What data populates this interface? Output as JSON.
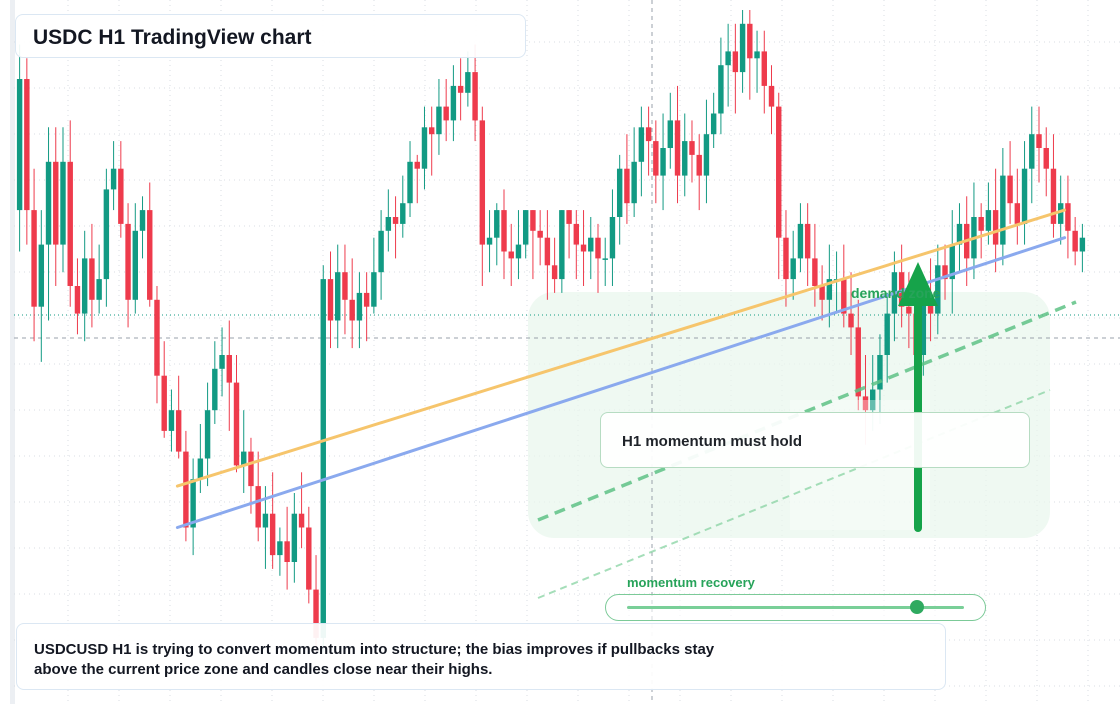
{
  "header": {
    "title": "USDC H1 TradingView chart"
  },
  "note": {
    "text": "H1 momentum must hold"
  },
  "caption": {
    "text": "USDCUSD H1 is trying to convert momentum into structure; the bias improves if pullbacks stay above the current price zone and candles close near their highs."
  },
  "demand_label": "demand zone",
  "momentum": {
    "label": "momentum recovery",
    "level": 0.86
  },
  "colors": {
    "up": "#129a83",
    "down": "#ee3b4c",
    "grid": "#d9dde3",
    "trend_orange": "#f6c56c",
    "trend_blue": "#8aa9ee",
    "accent_green": "#27a35a",
    "zone": "#e8f6ec"
  },
  "chart_data": {
    "type": "candlestick",
    "title": "USDC H1 TradingView chart",
    "xlabel": "",
    "ylabel": "",
    "symbol": "USDCUSD",
    "timeframe": "H1",
    "grid": true,
    "ylim": [
      0,
      1
    ],
    "candles": [
      [
        0.71,
        0.9,
        0.95,
        0.65
      ],
      [
        0.9,
        0.71,
        0.93,
        0.66
      ],
      [
        0.71,
        0.57,
        0.77,
        0.52
      ],
      [
        0.57,
        0.66,
        0.71,
        0.49
      ],
      [
        0.66,
        0.78,
        0.83,
        0.55
      ],
      [
        0.78,
        0.66,
        0.83,
        0.6
      ],
      [
        0.66,
        0.78,
        0.83,
        0.62
      ],
      [
        0.78,
        0.6,
        0.84,
        0.57
      ],
      [
        0.6,
        0.56,
        0.64,
        0.53
      ],
      [
        0.56,
        0.64,
        0.68,
        0.52
      ],
      [
        0.64,
        0.58,
        0.69,
        0.54
      ],
      [
        0.58,
        0.61,
        0.66,
        0.56
      ],
      [
        0.61,
        0.74,
        0.77,
        0.57
      ],
      [
        0.74,
        0.77,
        0.81,
        0.71
      ],
      [
        0.77,
        0.69,
        0.81,
        0.67
      ],
      [
        0.69,
        0.58,
        0.72,
        0.54
      ],
      [
        0.58,
        0.68,
        0.72,
        0.56
      ],
      [
        0.68,
        0.71,
        0.73,
        0.64
      ],
      [
        0.71,
        0.58,
        0.75,
        0.57
      ],
      [
        0.58,
        0.47,
        0.6,
        0.43
      ],
      [
        0.47,
        0.39,
        0.52,
        0.38
      ],
      [
        0.39,
        0.42,
        0.45,
        0.36
      ],
      [
        0.42,
        0.36,
        0.47,
        0.35
      ],
      [
        0.36,
        0.25,
        0.39,
        0.23
      ],
      [
        0.25,
        0.32,
        0.35,
        0.21
      ],
      [
        0.32,
        0.35,
        0.4,
        0.3
      ],
      [
        0.35,
        0.42,
        0.46,
        0.31
      ],
      [
        0.42,
        0.48,
        0.52,
        0.4
      ],
      [
        0.48,
        0.5,
        0.54,
        0.44
      ],
      [
        0.5,
        0.46,
        0.55,
        0.39
      ],
      [
        0.46,
        0.34,
        0.5,
        0.33
      ],
      [
        0.34,
        0.36,
        0.42,
        0.3
      ],
      [
        0.36,
        0.31,
        0.38,
        0.27
      ],
      [
        0.31,
        0.25,
        0.36,
        0.23
      ],
      [
        0.25,
        0.27,
        0.31,
        0.19
      ],
      [
        0.27,
        0.21,
        0.33,
        0.19
      ],
      [
        0.21,
        0.23,
        0.25,
        0.18
      ],
      [
        0.23,
        0.2,
        0.28,
        0.16
      ],
      [
        0.2,
        0.27,
        0.3,
        0.17
      ],
      [
        0.27,
        0.25,
        0.33,
        0.22
      ],
      [
        0.25,
        0.16,
        0.28,
        0.14
      ],
      [
        0.16,
        0.09,
        0.21,
        0.07
      ],
      [
        0.09,
        0.61,
        0.63,
        0.07
      ],
      [
        0.61,
        0.55,
        0.65,
        0.51
      ],
      [
        0.55,
        0.62,
        0.66,
        0.51
      ],
      [
        0.62,
        0.58,
        0.66,
        0.53
      ],
      [
        0.58,
        0.55,
        0.64,
        0.51
      ],
      [
        0.55,
        0.59,
        0.62,
        0.51
      ],
      [
        0.59,
        0.57,
        0.62,
        0.52
      ],
      [
        0.57,
        0.62,
        0.67,
        0.56
      ],
      [
        0.62,
        0.68,
        0.71,
        0.58
      ],
      [
        0.68,
        0.7,
        0.74,
        0.65
      ],
      [
        0.7,
        0.69,
        0.73,
        0.64
      ],
      [
        0.69,
        0.72,
        0.76,
        0.67
      ],
      [
        0.72,
        0.78,
        0.81,
        0.7
      ],
      [
        0.78,
        0.77,
        0.79,
        0.72
      ],
      [
        0.77,
        0.83,
        0.86,
        0.74
      ],
      [
        0.83,
        0.82,
        0.86,
        0.76
      ],
      [
        0.82,
        0.86,
        0.9,
        0.79
      ],
      [
        0.86,
        0.84,
        0.9,
        0.81
      ],
      [
        0.84,
        0.89,
        0.92,
        0.81
      ],
      [
        0.89,
        0.88,
        0.93,
        0.84
      ],
      [
        0.88,
        0.91,
        0.94,
        0.86
      ],
      [
        0.91,
        0.84,
        0.95,
        0.81
      ],
      [
        0.84,
        0.66,
        0.86,
        0.6
      ],
      [
        0.66,
        0.67,
        0.71,
        0.62
      ],
      [
        0.67,
        0.71,
        0.72,
        0.63
      ],
      [
        0.71,
        0.65,
        0.74,
        0.61
      ],
      [
        0.65,
        0.64,
        0.69,
        0.6
      ],
      [
        0.64,
        0.66,
        0.71,
        0.61
      ],
      [
        0.66,
        0.71,
        0.71,
        0.64
      ],
      [
        0.71,
        0.68,
        0.71,
        0.61
      ],
      [
        0.68,
        0.67,
        0.71,
        0.63
      ],
      [
        0.67,
        0.63,
        0.71,
        0.58
      ],
      [
        0.63,
        0.61,
        0.67,
        0.59
      ],
      [
        0.61,
        0.71,
        0.71,
        0.59
      ],
      [
        0.71,
        0.69,
        0.71,
        0.64
      ],
      [
        0.69,
        0.66,
        0.71,
        0.61
      ],
      [
        0.66,
        0.65,
        0.71,
        0.6
      ],
      [
        0.65,
        0.67,
        0.7,
        0.61
      ],
      [
        0.67,
        0.64,
        0.69,
        0.59
      ],
      [
        0.64,
        0.64,
        0.67,
        0.6
      ],
      [
        0.64,
        0.7,
        0.74,
        0.6
      ],
      [
        0.7,
        0.77,
        0.79,
        0.66
      ],
      [
        0.77,
        0.72,
        0.82,
        0.69
      ],
      [
        0.72,
        0.78,
        0.83,
        0.7
      ],
      [
        0.78,
        0.83,
        0.86,
        0.73
      ],
      [
        0.83,
        0.81,
        0.86,
        0.76
      ],
      [
        0.81,
        0.76,
        0.84,
        0.72
      ],
      [
        0.76,
        0.8,
        0.85,
        0.71
      ],
      [
        0.8,
        0.84,
        0.88,
        0.77
      ],
      [
        0.84,
        0.76,
        0.89,
        0.72
      ],
      [
        0.76,
        0.81,
        0.85,
        0.73
      ],
      [
        0.81,
        0.79,
        0.84,
        0.75
      ],
      [
        0.79,
        0.76,
        0.82,
        0.71
      ],
      [
        0.76,
        0.82,
        0.87,
        0.72
      ],
      [
        0.82,
        0.85,
        0.88,
        0.8
      ],
      [
        0.85,
        0.92,
        0.96,
        0.82
      ],
      [
        0.92,
        0.94,
        0.98,
        0.86
      ],
      [
        0.94,
        0.91,
        0.98,
        0.85
      ],
      [
        0.91,
        0.98,
        1.0,
        0.88
      ],
      [
        0.98,
        0.93,
        1.0,
        0.87
      ],
      [
        0.93,
        0.94,
        0.97,
        0.88
      ],
      [
        0.94,
        0.89,
        0.97,
        0.85
      ],
      [
        0.89,
        0.86,
        0.92,
        0.82
      ],
      [
        0.86,
        0.67,
        0.88,
        0.61
      ],
      [
        0.67,
        0.61,
        0.71,
        0.57
      ],
      [
        0.61,
        0.64,
        0.68,
        0.58
      ],
      [
        0.64,
        0.69,
        0.72,
        0.62
      ],
      [
        0.69,
        0.64,
        0.72,
        0.6
      ],
      [
        0.64,
        0.6,
        0.69,
        0.57
      ],
      [
        0.6,
        0.58,
        0.63,
        0.55
      ],
      [
        0.58,
        0.61,
        0.66,
        0.54
      ],
      [
        0.61,
        0.61,
        0.65,
        0.56
      ],
      [
        0.61,
        0.56,
        0.66,
        0.54
      ],
      [
        0.56,
        0.54,
        0.62,
        0.5
      ],
      [
        0.54,
        0.44,
        0.58,
        0.42
      ],
      [
        0.44,
        0.42,
        0.5,
        0.37
      ],
      [
        0.42,
        0.45,
        0.5,
        0.39
      ],
      [
        0.45,
        0.5,
        0.53,
        0.4
      ],
      [
        0.5,
        0.56,
        0.59,
        0.46
      ],
      [
        0.56,
        0.62,
        0.65,
        0.52
      ],
      [
        0.62,
        0.57,
        0.66,
        0.54
      ],
      [
        0.57,
        0.56,
        0.62,
        0.51
      ],
      [
        0.56,
        0.5,
        0.59,
        0.48
      ],
      [
        0.5,
        0.58,
        0.61,
        0.47
      ],
      [
        0.58,
        0.56,
        0.64,
        0.52
      ],
      [
        0.56,
        0.63,
        0.66,
        0.53
      ],
      [
        0.63,
        0.61,
        0.66,
        0.58
      ],
      [
        0.61,
        0.66,
        0.71,
        0.56
      ],
      [
        0.66,
        0.69,
        0.72,
        0.62
      ],
      [
        0.69,
        0.64,
        0.73,
        0.6
      ],
      [
        0.64,
        0.7,
        0.75,
        0.61
      ],
      [
        0.7,
        0.68,
        0.72,
        0.64
      ],
      [
        0.68,
        0.71,
        0.75,
        0.66
      ],
      [
        0.71,
        0.66,
        0.77,
        0.62
      ],
      [
        0.66,
        0.76,
        0.8,
        0.63
      ],
      [
        0.76,
        0.72,
        0.81,
        0.69
      ],
      [
        0.72,
        0.69,
        0.77,
        0.66
      ],
      [
        0.69,
        0.77,
        0.81,
        0.66
      ],
      [
        0.77,
        0.82,
        0.86,
        0.72
      ],
      [
        0.82,
        0.8,
        0.86,
        0.75
      ],
      [
        0.8,
        0.77,
        0.83,
        0.73
      ],
      [
        0.77,
        0.69,
        0.82,
        0.67
      ],
      [
        0.69,
        0.72,
        0.76,
        0.66
      ],
      [
        0.72,
        0.68,
        0.76,
        0.64
      ],
      [
        0.68,
        0.65,
        0.7,
        0.63
      ],
      [
        0.65,
        0.67,
        0.69,
        0.62
      ]
    ],
    "trendlines": [
      {
        "from": [
          0.02,
          0.31
        ],
        "to": [
          0.98,
          0.71
        ],
        "color": "orange"
      },
      {
        "from": [
          0.02,
          0.25
        ],
        "to": [
          0.98,
          0.67
        ],
        "color": "blue"
      }
    ],
    "zone": "demand zone"
  }
}
